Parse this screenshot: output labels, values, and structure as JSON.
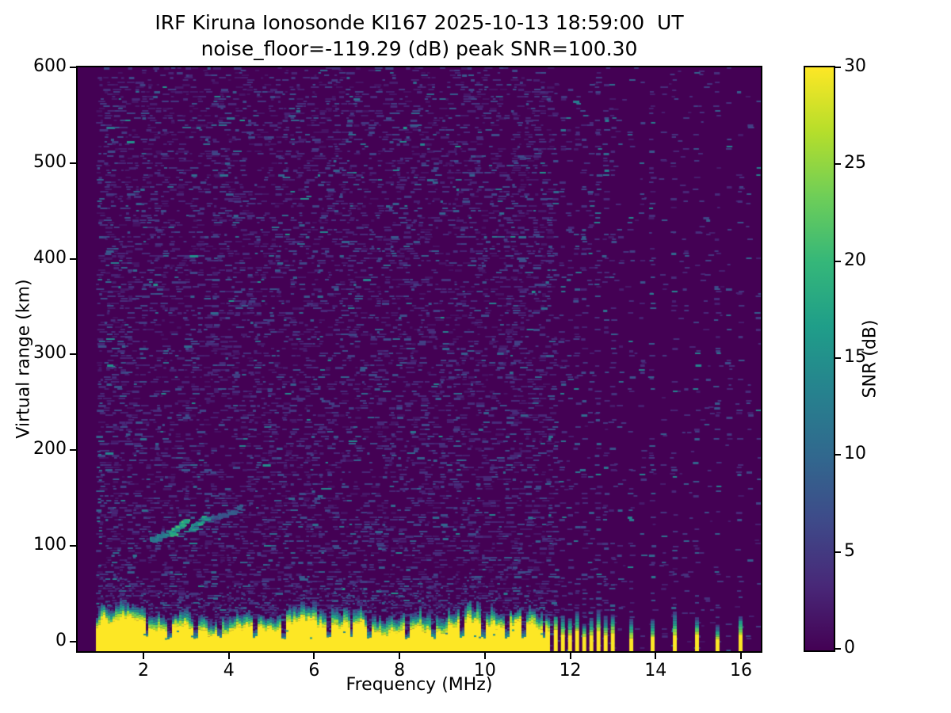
{
  "figure": {
    "title_line1": "IRF Kiruna Ionosonde KI167 2025-10-13 18:59:00  UT",
    "title_line2": "noise_floor=-119.29 (dB) peak SNR=100.30"
  },
  "axes": {
    "xlabel": "Frequency (MHz)",
    "ylabel": "Virtual range (km)"
  },
  "colorbar": {
    "label": "SNR (dB)"
  },
  "chart_data": {
    "type": "heatmap",
    "title": "IRF Kiruna Ionosonde KI167 2025-10-13 18:59:00  UT",
    "subtitle": "noise_floor=-119.29 (dB) peak SNR=100.30",
    "xlabel": "Frequency (MHz)",
    "ylabel": "Virtual range (km)",
    "colorbar_label": "SNR (dB)",
    "x_ticks": [
      2,
      4,
      6,
      8,
      10,
      12,
      14,
      16
    ],
    "y_ticks": [
      0,
      100,
      200,
      300,
      400,
      500,
      600
    ],
    "colorbar_ticks": [
      0,
      5,
      10,
      15,
      20,
      25,
      30
    ],
    "xlim_mhz": [
      0.46,
      16.46
    ],
    "ylim_km": [
      -10,
      600
    ],
    "clim_db": [
      0,
      30
    ],
    "grid": false,
    "legend": false,
    "colormap": "viridis",
    "colormap_stops": [
      "#440154",
      "#482878",
      "#3e4a89",
      "#31688e",
      "#26828e",
      "#1f9e89",
      "#35b779",
      "#6ece58",
      "#b5de2b",
      "#fde725"
    ],
    "noise_floor_db": -119.29,
    "peak_snr_db": 100.3,
    "render_seed": 42,
    "features": {
      "data_start_mhz": 0.89,
      "background_snr_db": 0,
      "noise_speckle": {
        "freq_range_mhz": [
          0.89,
          11.55
        ],
        "snr_db_range": [
          1,
          16
        ],
        "coverage": 0.4
      },
      "ground_clutter_band": {
        "freq_range_mhz": [
          0.89,
          11.5
        ],
        "solid_top_km_mean": 14,
        "diffuse_top_km_mean": 32,
        "snr_db": 30
      },
      "band_notches_mhz": [
        2.05,
        2.57,
        3.2,
        3.75,
        4.6,
        5.25,
        6.3,
        6.85,
        7.27,
        8.15,
        8.75,
        9.45,
        9.95,
        10.5,
        10.9,
        11.35
      ],
      "band_bumps": [
        {
          "f_mhz": 1.05,
          "extra_km": 9
        },
        {
          "f_mhz": 1.45,
          "extra_km": 5
        }
      ],
      "echo_trace_segments": [
        {
          "f1_mhz": 2.15,
          "f2_mhz": 2.5,
          "km1": 108,
          "km2": 114,
          "snr_db": 12
        },
        {
          "f1_mhz": 2.6,
          "f2_mhz": 2.95,
          "km1": 114,
          "km2": 127,
          "snr_db": 17
        },
        {
          "f1_mhz": 3.05,
          "f2_mhz": 3.5,
          "km1": 119,
          "km2": 133,
          "snr_db": 15
        },
        {
          "f1_mhz": 3.55,
          "f2_mhz": 4.25,
          "km1": 129,
          "km2": 141,
          "snr_db": 8
        }
      ],
      "stripe_cluster": {
        "start_mhz": 11.66,
        "step_mhz": 0.167,
        "count": 9,
        "yellow_top_km": [
          5,
          14
        ],
        "diffuse_top_km": [
          22,
          38
        ]
      },
      "isolated_stripes_mhz": [
        13.43,
        13.93,
        14.45,
        14.97,
        15.45,
        15.99
      ],
      "rfi_columns_mhz": [
        11.52,
        13.18,
        13.7,
        14.2,
        14.71,
        15.2,
        15.72,
        16.2,
        16.42
      ]
    }
  }
}
